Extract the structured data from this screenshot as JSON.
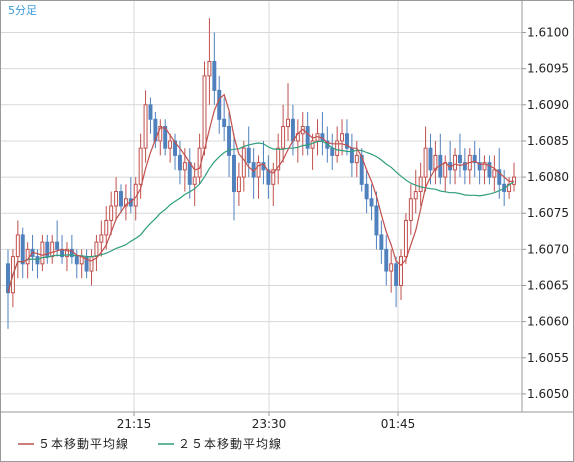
{
  "chart_data": {
    "type": "candlestick",
    "timeframe_label": "5分足",
    "x_tick_labels": [
      "21:15",
      "23:30",
      "01:45"
    ],
    "y_tick_labels": [
      "1.6100",
      "1.6095",
      "1.6090",
      "1.6085",
      "1.6080",
      "1.6075",
      "1.6070",
      "1.6065",
      "1.6060",
      "1.6055",
      "1.6050"
    ],
    "ylim": [
      1.60475,
      1.61045
    ],
    "grid": true,
    "legend_position": "bottom-left",
    "colors": {
      "up": "#c0504d",
      "down": "#4f81bd",
      "ma5": "#c0504d",
      "ma25": "#2e9e7e",
      "grid": "#d8d8d8",
      "axis": "#999999"
    },
    "legend": [
      {
        "label": "５本移動平均線",
        "color": "#c0504d"
      },
      {
        "label": "２５本移動平均線",
        "color": "#2e9e7e"
      }
    ],
    "candles": [
      [
        1.6068,
        1.607,
        1.6059,
        1.6064
      ],
      [
        1.6064,
        1.607,
        1.6062,
        1.6069
      ],
      [
        1.6069,
        1.6074,
        1.6066,
        1.6072
      ],
      [
        1.6072,
        1.6073,
        1.6066,
        1.6068
      ],
      [
        1.6068,
        1.6071,
        1.6066,
        1.607
      ],
      [
        1.607,
        1.6072,
        1.6067,
        1.6069
      ],
      [
        1.6069,
        1.607,
        1.6066,
        1.6068
      ],
      [
        1.6068,
        1.6072,
        1.6067,
        1.6071
      ],
      [
        1.6071,
        1.6072,
        1.6068,
        1.6069
      ],
      [
        1.6069,
        1.6072,
        1.6068,
        1.6071
      ],
      [
        1.6071,
        1.6074,
        1.6069,
        1.607
      ],
      [
        1.607,
        1.6072,
        1.6068,
        1.6069
      ],
      [
        1.6069,
        1.6071,
        1.6067,
        1.607
      ],
      [
        1.607,
        1.6072,
        1.6068,
        1.6069
      ],
      [
        1.6069,
        1.607,
        1.6066,
        1.6068
      ],
      [
        1.6068,
        1.607,
        1.6066,
        1.6069
      ],
      [
        1.6069,
        1.607,
        1.6066,
        1.6067
      ],
      [
        1.6067,
        1.607,
        1.6065,
        1.6069
      ],
      [
        1.6069,
        1.6072,
        1.6067,
        1.6071
      ],
      [
        1.6071,
        1.6074,
        1.6069,
        1.6072
      ],
      [
        1.6072,
        1.6076,
        1.607,
        1.6074
      ],
      [
        1.6074,
        1.6078,
        1.6072,
        1.6076
      ],
      [
        1.6076,
        1.608,
        1.6074,
        1.6078
      ],
      [
        1.6078,
        1.6079,
        1.6075,
        1.6076
      ],
      [
        1.6076,
        1.6079,
        1.6074,
        1.6077
      ],
      [
        1.6077,
        1.608,
        1.6075,
        1.6076
      ],
      [
        1.6076,
        1.608,
        1.6074,
        1.6079
      ],
      [
        1.6079,
        1.6086,
        1.6077,
        1.6084
      ],
      [
        1.6084,
        1.6092,
        1.6082,
        1.609
      ],
      [
        1.609,
        1.6091,
        1.6086,
        1.6088
      ],
      [
        1.6088,
        1.6089,
        1.6084,
        1.6085
      ],
      [
        1.6085,
        1.6088,
        1.6083,
        1.6087
      ],
      [
        1.6087,
        1.6088,
        1.6083,
        1.6084
      ],
      [
        1.6084,
        1.6086,
        1.6082,
        1.6085
      ],
      [
        1.6085,
        1.6086,
        1.6081,
        1.6083
      ],
      [
        1.6083,
        1.6085,
        1.6079,
        1.6081
      ],
      [
        1.6081,
        1.6084,
        1.6078,
        1.6082
      ],
      [
        1.6082,
        1.6084,
        1.6077,
        1.6079
      ],
      [
        1.6079,
        1.6082,
        1.6076,
        1.608
      ],
      [
        1.608,
        1.6086,
        1.6079,
        1.6084
      ],
      [
        1.6084,
        1.6096,
        1.6083,
        1.6094
      ],
      [
        1.6094,
        1.6102,
        1.609,
        1.6096
      ],
      [
        1.6096,
        1.61,
        1.609,
        1.6092
      ],
      [
        1.6092,
        1.6094,
        1.6086,
        1.6088
      ],
      [
        1.6088,
        1.6091,
        1.6085,
        1.6087
      ],
      [
        1.6087,
        1.6089,
        1.608,
        1.6083
      ],
      [
        1.6083,
        1.6086,
        1.6074,
        1.6078
      ],
      [
        1.6078,
        1.6082,
        1.6076,
        1.608
      ],
      [
        1.608,
        1.6085,
        1.6078,
        1.6084
      ],
      [
        1.6084,
        1.6087,
        1.608,
        1.6082
      ],
      [
        1.6082,
        1.6084,
        1.6077,
        1.608
      ],
      [
        1.608,
        1.6083,
        1.6077,
        1.6082
      ],
      [
        1.6082,
        1.6085,
        1.6079,
        1.6081
      ],
      [
        1.6081,
        1.6083,
        1.6077,
        1.6079
      ],
      [
        1.6079,
        1.6082,
        1.6076,
        1.6081
      ],
      [
        1.6081,
        1.6086,
        1.6079,
        1.6084
      ],
      [
        1.6084,
        1.609,
        1.6082,
        1.6087
      ],
      [
        1.6087,
        1.6093,
        1.6085,
        1.6088
      ],
      [
        1.6088,
        1.609,
        1.6083,
        1.6085
      ],
      [
        1.6085,
        1.6088,
        1.6082,
        1.6086
      ],
      [
        1.6086,
        1.6089,
        1.6083,
        1.6087
      ],
      [
        1.6087,
        1.6089,
        1.6083,
        1.6084
      ],
      [
        1.6084,
        1.6086,
        1.6081,
        1.6085
      ],
      [
        1.6085,
        1.6088,
        1.6083,
        1.6086
      ],
      [
        1.6086,
        1.6089,
        1.6083,
        1.6085
      ],
      [
        1.6085,
        1.6087,
        1.6082,
        1.6084
      ],
      [
        1.6084,
        1.6086,
        1.6081,
        1.6083
      ],
      [
        1.6083,
        1.6087,
        1.6082,
        1.6085
      ],
      [
        1.6085,
        1.6088,
        1.6083,
        1.6086
      ],
      [
        1.6086,
        1.6088,
        1.6083,
        1.6084
      ],
      [
        1.6084,
        1.6086,
        1.608,
        1.6082
      ],
      [
        1.6082,
        1.6085,
        1.608,
        1.6083
      ],
      [
        1.6083,
        1.6084,
        1.6078,
        1.6079
      ],
      [
        1.6079,
        1.6081,
        1.6075,
        1.6077
      ],
      [
        1.6077,
        1.6079,
        1.6074,
        1.6076
      ],
      [
        1.6076,
        1.6078,
        1.607,
        1.6072
      ],
      [
        1.6072,
        1.6074,
        1.6068,
        1.607
      ],
      [
        1.607,
        1.6072,
        1.6065,
        1.6067
      ],
      [
        1.6067,
        1.607,
        1.6064,
        1.6068
      ],
      [
        1.6068,
        1.6069,
        1.6062,
        1.6065
      ],
      [
        1.6065,
        1.607,
        1.6063,
        1.6069
      ],
      [
        1.6069,
        1.6075,
        1.6068,
        1.6074
      ],
      [
        1.6074,
        1.6079,
        1.6072,
        1.6077
      ],
      [
        1.6077,
        1.6081,
        1.6075,
        1.6078
      ],
      [
        1.6078,
        1.6082,
        1.6076,
        1.608
      ],
      [
        1.608,
        1.6087,
        1.6078,
        1.6084
      ],
      [
        1.6084,
        1.6086,
        1.6079,
        1.6081
      ],
      [
        1.6081,
        1.6085,
        1.6079,
        1.6083
      ],
      [
        1.6083,
        1.6086,
        1.6079,
        1.608
      ],
      [
        1.608,
        1.6083,
        1.6078,
        1.6082
      ],
      [
        1.6082,
        1.6085,
        1.6079,
        1.6081
      ],
      [
        1.6081,
        1.6084,
        1.6079,
        1.6083
      ],
      [
        1.6083,
        1.6086,
        1.608,
        1.6082
      ],
      [
        1.6082,
        1.6084,
        1.6079,
        1.6081
      ],
      [
        1.6081,
        1.6084,
        1.6079,
        1.6083
      ],
      [
        1.6083,
        1.6085,
        1.608,
        1.6082
      ],
      [
        1.6082,
        1.6084,
        1.6079,
        1.6081
      ],
      [
        1.6081,
        1.6083,
        1.6079,
        1.6082
      ],
      [
        1.6082,
        1.6083,
        1.6079,
        1.608
      ],
      [
        1.608,
        1.6083,
        1.6078,
        1.6081
      ],
      [
        1.6081,
        1.6084,
        1.6077,
        1.6079
      ],
      [
        1.6079,
        1.6081,
        1.6076,
        1.6078
      ],
      [
        1.6078,
        1.608,
        1.6077,
        1.6079
      ],
      [
        1.6079,
        1.6082,
        1.6078,
        1.608
      ]
    ]
  }
}
